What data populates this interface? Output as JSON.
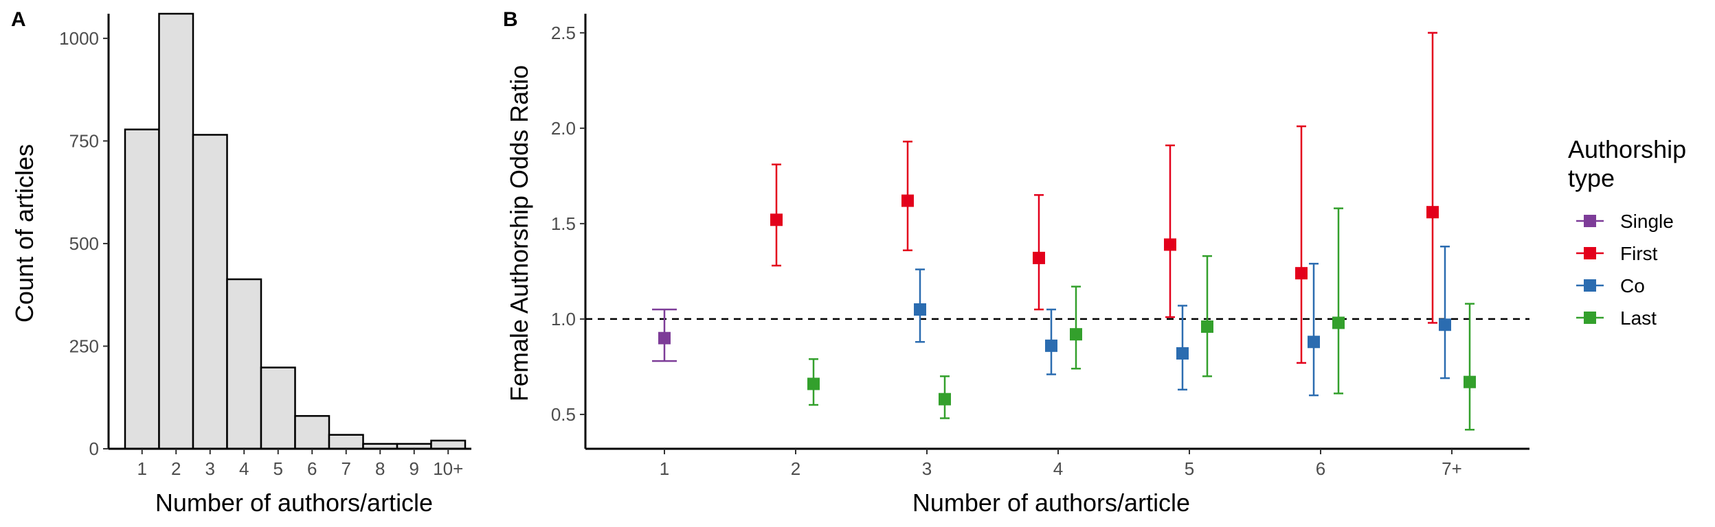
{
  "chart_data": [
    {
      "panel": "A",
      "type": "bar",
      "categories": [
        "1",
        "2",
        "3",
        "4",
        "5",
        "6",
        "7",
        "8",
        "9",
        "10+"
      ],
      "values": [
        778,
        1060,
        765,
        413,
        198,
        80,
        34,
        12,
        12,
        20
      ],
      "yticks": [
        0,
        250,
        500,
        750,
        1000
      ],
      "ylim": [
        0,
        1060
      ],
      "xlabel": "Number of authors/article",
      "ylabel": "Count of articles",
      "colors": {
        "fill": "#e0e0e0",
        "stroke": "#000000"
      }
    },
    {
      "panel": "B",
      "type": "scatter",
      "categories": [
        "1",
        "2",
        "3",
        "4",
        "5",
        "6",
        "7+"
      ],
      "yticks": [
        0.5,
        1.0,
        1.5,
        2.0,
        2.5
      ],
      "ytick_labels": [
        "0.5",
        "1.0",
        "1.5",
        "2.0",
        "2.5"
      ],
      "ylim": [
        0.32,
        2.6
      ],
      "reference_line": 1.0,
      "xlabel": "Number of authors/article",
      "ylabel": "Female Authorship Odds Ratio",
      "legend": {
        "title_line1": "Authorship",
        "title_line2": "type",
        "position": "right"
      },
      "series": [
        {
          "name": "Single",
          "color": "#7d3c98",
          "points": [
            {
              "category": "1",
              "y": 0.9,
              "lo": 0.78,
              "hi": 1.05
            }
          ]
        },
        {
          "name": "First",
          "color": "#e3001b",
          "points": [
            {
              "category": "2",
              "y": 1.52,
              "lo": 1.28,
              "hi": 1.81
            },
            {
              "category": "3",
              "y": 1.62,
              "lo": 1.36,
              "hi": 1.93
            },
            {
              "category": "4",
              "y": 1.32,
              "lo": 1.05,
              "hi": 1.65
            },
            {
              "category": "5",
              "y": 1.39,
              "lo": 1.01,
              "hi": 1.91
            },
            {
              "category": "6",
              "y": 1.24,
              "lo": 0.77,
              "hi": 2.01
            },
            {
              "category": "7+",
              "y": 1.56,
              "lo": 0.98,
              "hi": 2.5
            }
          ]
        },
        {
          "name": "Co",
          "color": "#2b6cb0",
          "points": [
            {
              "category": "3",
              "y": 1.05,
              "lo": 0.88,
              "hi": 1.26
            },
            {
              "category": "4",
              "y": 0.86,
              "lo": 0.71,
              "hi": 1.05
            },
            {
              "category": "5",
              "y": 0.82,
              "lo": 0.63,
              "hi": 1.07
            },
            {
              "category": "6",
              "y": 0.88,
              "lo": 0.6,
              "hi": 1.29
            },
            {
              "category": "7+",
              "y": 0.97,
              "lo": 0.69,
              "hi": 1.38
            }
          ]
        },
        {
          "name": "Last",
          "color": "#33a02c",
          "points": [
            {
              "category": "2",
              "y": 0.66,
              "lo": 0.55,
              "hi": 0.79
            },
            {
              "category": "3",
              "y": 0.58,
              "lo": 0.48,
              "hi": 0.7
            },
            {
              "category": "4",
              "y": 0.92,
              "lo": 0.74,
              "hi": 1.17
            },
            {
              "category": "5",
              "y": 0.96,
              "lo": 0.7,
              "hi": 1.33
            },
            {
              "category": "6",
              "y": 0.98,
              "lo": 0.61,
              "hi": 1.58
            },
            {
              "category": "7+",
              "y": 0.67,
              "lo": 0.42,
              "hi": 1.08
            }
          ]
        }
      ]
    }
  ]
}
